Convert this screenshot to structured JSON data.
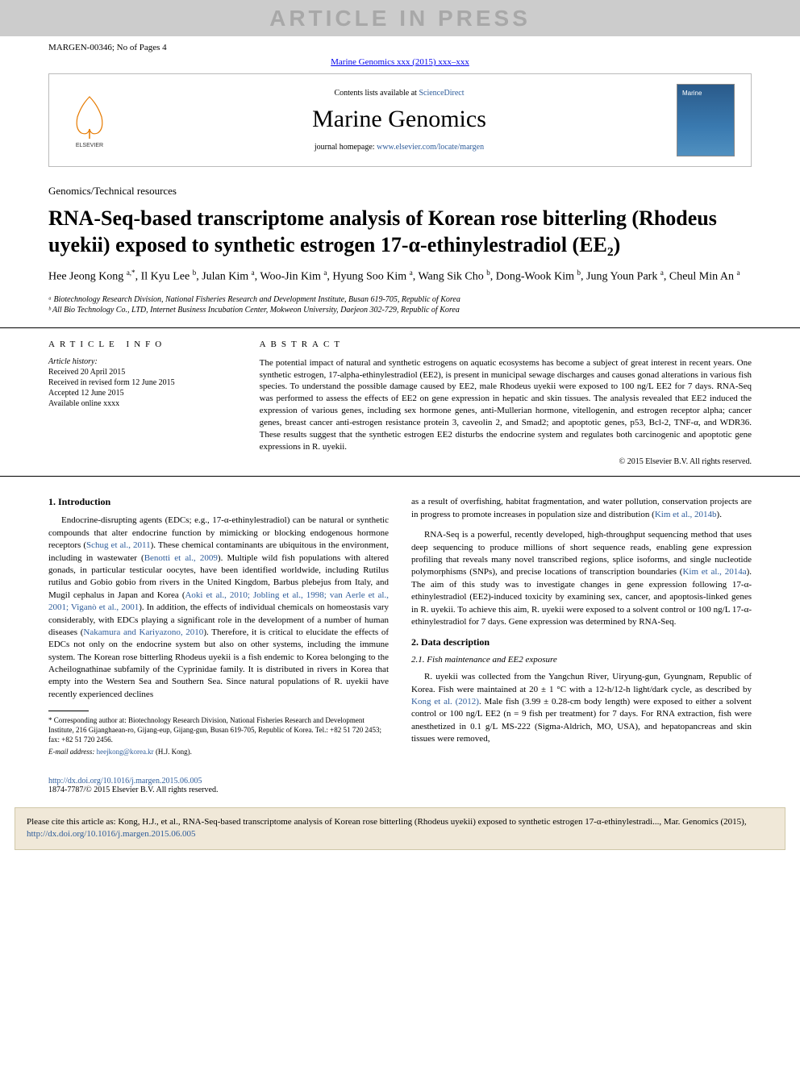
{
  "watermark": "ARTICLE IN PRESS",
  "header": {
    "ref": "MARGEN-00346; No of Pages 4",
    "citation_line": "Marine Genomics xxx (2015) xxx–xxx"
  },
  "journal_box": {
    "contents_text": "Contents lists available at ",
    "contents_link": "ScienceDirect",
    "journal_name": "Marine Genomics",
    "homepage_label": "journal homepage: ",
    "homepage_url": "www.elsevier.com/locate/margen"
  },
  "article": {
    "type": "Genomics/Technical resources",
    "title": "RNA-Seq-based transcriptome analysis of Korean rose bitterling (Rhodeus uyekii) exposed to synthetic estrogen 17-α-ethinylestradiol (EE₂)",
    "authors_html": "Hee Jeong Kong <sup>a,*</sup>, Il Kyu Lee <sup>b</sup>, Julan Kim <sup>a</sup>, Woo-Jin Kim <sup>a</sup>, Hyung Soo Kim <sup>a</sup>, Wang Sik Cho <sup>b</sup>, Dong-Wook Kim <sup>b</sup>, Jung Youn Park <sup>a</sup>, Cheul Min An <sup>a</sup>"
  },
  "affiliations": [
    "ᵃ Biotechnology Research Division, National Fisheries Research and Development Institute, Busan 619-705, Republic of Korea",
    "ᵇ All Bio Technology Co., LTD, Internet Business Incubation Center, Mokweon University, Daejeon 302-729, Republic of Korea"
  ],
  "info_heading": "ARTICLE INFO",
  "abstract_heading": "ABSTRACT",
  "history": {
    "label": "Article history:",
    "lines": [
      "Received 20 April 2015",
      "Received in revised form 12 June 2015",
      "Accepted 12 June 2015",
      "Available online xxxx"
    ]
  },
  "abstract": "The potential impact of natural and synthetic estrogens on aquatic ecosystems has become a subject of great interest in recent years. One synthetic estrogen, 17-alpha-ethinylestradiol (EE2), is present in municipal sewage discharges and causes gonad alterations in various fish species. To understand the possible damage caused by EE2, male Rhodeus uyekii were exposed to 100 ng/L EE2 for 7 days. RNA-Seq was performed to assess the effects of EE2 on gene expression in hepatic and skin tissues. The analysis revealed that EE2 induced the expression of various genes, including sex hormone genes, anti-Mullerian hormone, vitellogenin, and estrogen receptor alpha; cancer genes, breast cancer anti-estrogen resistance protein 3, caveolin 2, and Smad2; and apoptotic genes, p53, Bcl-2, TNF-α, and WDR36. These results suggest that the synthetic estrogen EE2 disturbs the endocrine system and regulates both carcinogenic and apoptotic gene expressions in R. uyekii.",
  "copyright": "© 2015 Elsevier B.V. All rights reserved.",
  "sections": {
    "intro_heading": "1. Introduction",
    "intro_p1": "Endocrine-disrupting agents (EDCs; e.g., 17-α-ethinylestradiol) can be natural or synthetic compounds that alter endocrine function by mimicking or blocking endogenous hormone receptors (Schug et al., 2011). These chemical contaminants are ubiquitous in the environment, including in wastewater (Benotti et al., 2009). Multiple wild fish populations with altered gonads, in particular testicular oocytes, have been identified worldwide, including Rutilus rutilus and Gobio gobio from rivers in the United Kingdom, Barbus plebejus from Italy, and Mugil cephalus in Japan and Korea (Aoki et al., 2010; Jobling et al., 1998; van Aerle et al., 2001; Viganò et al., 2001). In addition, the effects of individual chemicals on homeostasis vary considerably, with EDCs playing a significant role in the development of a number of human diseases (Nakamura and Kariyazono, 2010). Therefore, it is critical to elucidate the effects of EDCs not only on the endocrine system but also on other systems, including the immune system. The Korean rose bitterling Rhodeus uyekii is a fish endemic to Korea belonging to the Acheilognathinae subfamily of the Cyprinidae family. It is distributed in rivers in Korea that empty into the Western Sea and Southern Sea. Since natural populations of R. uyekii have recently experienced declines",
    "intro_p2": "as a result of overfishing, habitat fragmentation, and water pollution, conservation projects are in progress to promote increases in population size and distribution (Kim et al., 2014b).",
    "intro_p3": "RNA-Seq is a powerful, recently developed, high-throughput sequencing method that uses deep sequencing to produce millions of short sequence reads, enabling gene expression profiling that reveals many novel transcribed regions, splice isoforms, and single nucleotide polymorphisms (SNPs), and precise locations of transcription boundaries (Kim et al., 2014a). The aim of this study was to investigate changes in gene expression following 17-α-ethinylestradiol (EE2)-induced toxicity by examining sex, cancer, and apoptosis-linked genes in R. uyekii. To achieve this aim, R. uyekii were exposed to a solvent control or 100 ng/L 17-α-ethinylestradiol for 7 days. Gene expression was determined by RNA-Seq.",
    "data_heading": "2. Data description",
    "data_sub": "2.1. Fish maintenance and EE2 exposure",
    "data_p1": "R. uyekii was collected from the Yangchun River, Uiryung-gun, Gyungnam, Republic of Korea. Fish were maintained at 20 ± 1 °C with a 12-h/12-h light/dark cycle, as described by Kong et al. (2012). Male fish (3.99 ± 0.28-cm body length) were exposed to either a solvent control or 100 ng/L EE2 (n = 9 fish per treatment) for 7 days. For RNA extraction, fish were anesthetized in 0.1 g/L MS-222 (Sigma-Aldrich, MO, USA), and hepatopancreas and skin tissues were removed,"
  },
  "footnotes": {
    "corresponding": "* Corresponding author at: Biotechnology Research Division, National Fisheries Research and Development Institute, 216 Gijanghaean-ro, Gijang-eup, Gijang-gun, Busan 619-705, Republic of Korea. Tel.: +82 51 720 2453; fax: +82 51 720 2456.",
    "email_label": "E-mail address: ",
    "email": "heejkong@korea.kr",
    "email_suffix": " (H.J. Kong)."
  },
  "doi": {
    "url": "http://dx.doi.org/10.1016/j.margen.2015.06.005",
    "issn_line": "1874-7787/© 2015 Elsevier B.V. All rights reserved."
  },
  "cite_banner": {
    "prefix": "Please cite this article as: Kong, H.J., et al., RNA-Seq-based transcriptome analysis of Korean rose bitterling (Rhodeus uyekii) exposed to synthetic estrogen 17-α-ethinylestradi..., Mar. Genomics (2015), ",
    "link": "http://dx.doi.org/10.1016/j.margen.2015.06.005"
  },
  "colors": {
    "link": "#2e5c9a",
    "banner_bg": "#f0e8d8",
    "watermark_bg": "#cccccc"
  }
}
